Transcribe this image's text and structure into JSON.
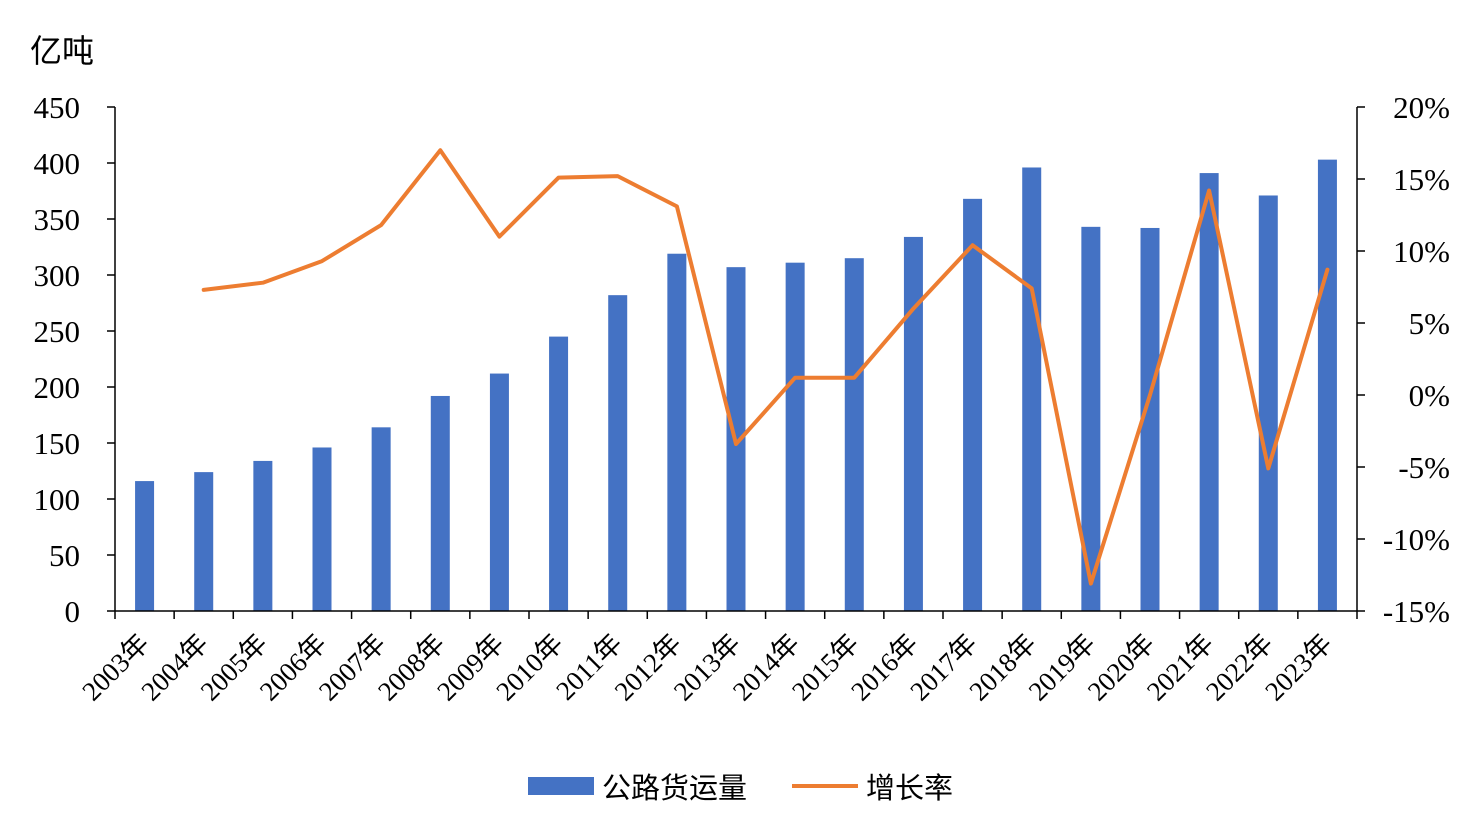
{
  "chart_data": {
    "type": "bar",
    "unit_label": "亿吨",
    "categories": [
      "2003年",
      "2004年",
      "2005年",
      "2006年",
      "2007年",
      "2008年",
      "2009年",
      "2010年",
      "2011年",
      "2012年",
      "2013年",
      "2014年",
      "2015年",
      "2016年",
      "2017年",
      "2018年",
      "2019年",
      "2020年",
      "2021年",
      "2022年",
      "2023年"
    ],
    "series": [
      {
        "name": "公路货运量",
        "type": "bar",
        "axis": "left",
        "color": "#4472C4",
        "values": [
          116,
          124,
          134,
          146,
          164,
          192,
          212,
          245,
          282,
          319,
          307,
          311,
          315,
          334,
          368,
          396,
          343,
          342,
          391,
          371,
          403
        ]
      },
      {
        "name": "增长率",
        "type": "line",
        "axis": "right",
        "color": "#ED7D31",
        "values": [
          null,
          7.3,
          7.8,
          9.3,
          11.8,
          17.0,
          11.0,
          15.1,
          15.2,
          13.1,
          -3.4,
          1.2,
          1.2,
          6.0,
          10.4,
          7.4,
          -13.1,
          0.0,
          14.2,
          -5.1,
          8.7
        ]
      }
    ],
    "y_left": {
      "min": 0,
      "max": 450,
      "step": 50,
      "ticks": [
        "0",
        "50",
        "100",
        "150",
        "200",
        "250",
        "300",
        "350",
        "400",
        "450"
      ]
    },
    "y_right": {
      "min": -15,
      "max": 20,
      "step": 5,
      "ticks": [
        "-15%",
        "-10%",
        "-5%",
        "0%",
        "5%",
        "10%",
        "15%",
        "20%"
      ]
    },
    "grid": false,
    "legend_position": "bottom"
  }
}
